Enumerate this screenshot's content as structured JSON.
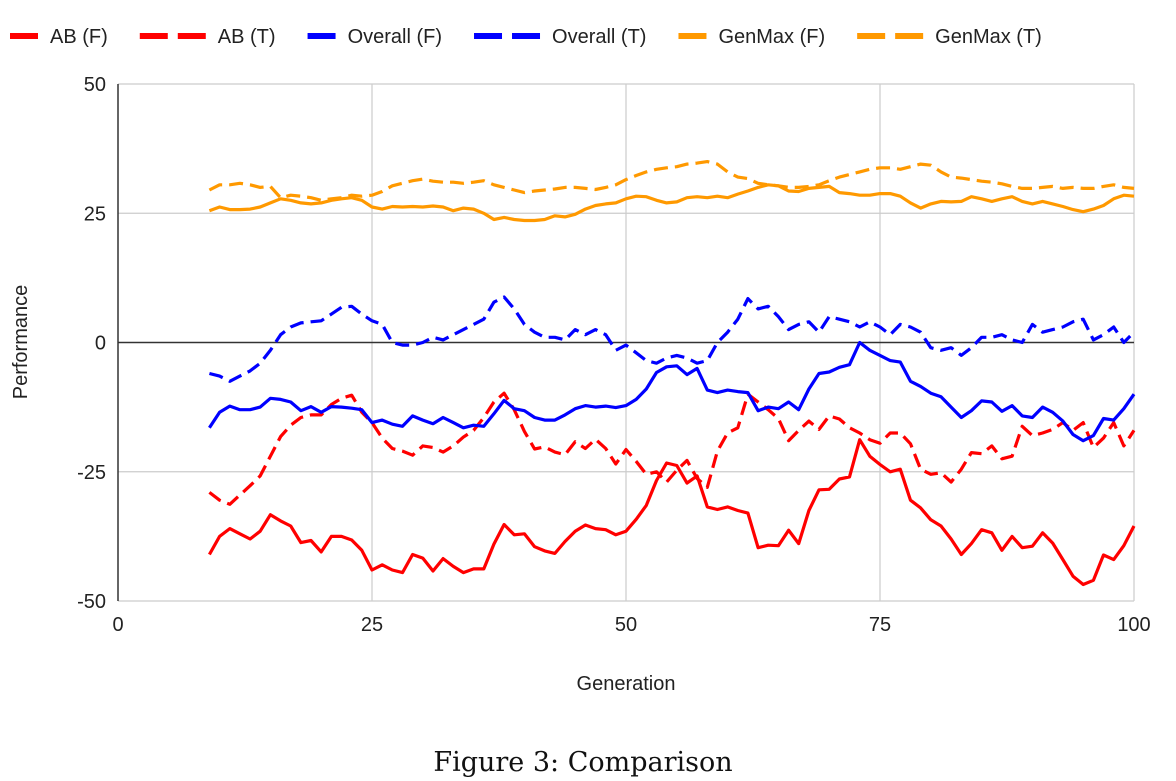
{
  "caption": "Figure 3: Comparison",
  "chart_data": {
    "type": "line",
    "title": "",
    "xlabel": "Generation",
    "ylabel": "Performance",
    "xlim": [
      0,
      100
    ],
    "ylim": [
      -50,
      50
    ],
    "x_ticks": [
      0,
      25,
      50,
      75,
      100
    ],
    "y_ticks": [
      -50,
      -25,
      0,
      25,
      50
    ],
    "x_tick_labels": [
      "0",
      "25",
      "50",
      "75",
      "100"
    ],
    "y_tick_labels": [
      "-50",
      "-25",
      "0",
      "25",
      "50"
    ],
    "grid": true,
    "legend_position": "top",
    "series": [
      {
        "name": "AB (F)",
        "color": "#ff0000",
        "dash": "solid",
        "x": [
          9,
          10,
          11,
          12,
          13,
          14,
          15,
          16,
          17,
          18,
          19,
          20,
          21,
          22,
          23,
          24,
          25,
          26,
          27,
          28,
          29,
          30,
          31,
          32,
          33,
          34,
          35,
          36,
          37,
          38,
          39,
          40,
          41,
          42,
          43,
          44,
          45,
          46,
          47,
          48,
          49,
          50,
          51,
          52,
          53,
          54,
          55,
          56,
          57,
          58,
          59,
          60,
          61,
          62,
          63,
          64,
          65,
          66,
          67,
          68,
          69,
          70,
          71,
          72,
          73,
          74,
          75,
          76,
          77,
          78,
          79,
          80,
          81,
          82,
          83,
          84,
          85,
          86,
          87,
          88,
          89,
          90,
          91,
          92,
          93,
          94,
          95,
          96,
          97,
          98,
          99,
          100
        ],
        "y": [
          -41,
          -37.5,
          -36,
          -37,
          -38,
          -36.5,
          -33.3,
          -34.5,
          -35.5,
          -38.7,
          -38.3,
          -40.5,
          -37.5,
          -37.5,
          -38.2,
          -40.2,
          -44,
          -43,
          -44,
          -44.5,
          -41,
          -41.7,
          -44.2,
          -41.8,
          -43.3,
          -44.5,
          -43.8,
          -43.8,
          -39,
          -35.2,
          -37.2,
          -37,
          -39.5,
          -40.3,
          -40.8,
          -38.5,
          -36.5,
          -35.3,
          -36,
          -36.2,
          -37.2,
          -36.5,
          -34.2,
          -31.5,
          -26.7,
          -23.3,
          -23.8,
          -27.2,
          -25.8,
          -31.8,
          -32.3,
          -31.8,
          -32.5,
          -33,
          -39.7,
          -39.2,
          -39.3,
          -36.3,
          -38.9,
          -32.5,
          -28.5,
          -28.4,
          -26.4,
          -26,
          -18.8,
          -22,
          -23.6,
          -25,
          -24.5,
          -30.5,
          -32,
          -34.3,
          -35.5,
          -38,
          -41,
          -38.9,
          -36.2,
          -36.8,
          -40.2,
          -37.5,
          -39.7,
          -39.4,
          -36.8,
          -38.8,
          -42,
          -45.2,
          -46.8,
          -46,
          -41.1,
          -42,
          -39.3,
          -35.5
        ]
      },
      {
        "name": "AB (T)",
        "color": "#ff0000",
        "dash": "dashed",
        "x": [
          9,
          10,
          11,
          12,
          13,
          14,
          15,
          16,
          17,
          18,
          19,
          20,
          21,
          22,
          23,
          24,
          25,
          26,
          27,
          28,
          29,
          30,
          31,
          32,
          33,
          34,
          35,
          36,
          37,
          38,
          39,
          40,
          41,
          42,
          43,
          44,
          45,
          46,
          47,
          48,
          49,
          50,
          51,
          52,
          53,
          54,
          55,
          56,
          57,
          58,
          59,
          60,
          61,
          62,
          63,
          64,
          65,
          66,
          67,
          68,
          69,
          70,
          71,
          72,
          73,
          74,
          75,
          76,
          77,
          78,
          79,
          80,
          81,
          82,
          83,
          84,
          85,
          86,
          87,
          88,
          89,
          90,
          91,
          92,
          93,
          94,
          95,
          96,
          97,
          98,
          99,
          100
        ],
        "y": [
          -29,
          -30.5,
          -31.3,
          -29.5,
          -27.7,
          -25.8,
          -22,
          -18.2,
          -16,
          -14.5,
          -14,
          -14,
          -12,
          -10.8,
          -10.2,
          -13.5,
          -15.5,
          -18.5,
          -20.5,
          -21,
          -21.8,
          -20,
          -20.3,
          -21.2,
          -20,
          -18.3,
          -17,
          -14.5,
          -11.5,
          -9.8,
          -13,
          -17.2,
          -20.6,
          -20.2,
          -21.2,
          -21.7,
          -19.2,
          -20.5,
          -18.7,
          -20.5,
          -23.5,
          -20.7,
          -23,
          -25.5,
          -25,
          -27,
          -24.7,
          -22.8,
          -26.3,
          -28,
          -21,
          -17.5,
          -16.5,
          -10,
          -11.5,
          -13,
          -14.7,
          -19,
          -17,
          -15.2,
          -16.8,
          -14.2,
          -14.8,
          -16.5,
          -17.5,
          -18.8,
          -19.5,
          -17.5,
          -17.5,
          -19.6,
          -24.5,
          -25.5,
          -25.2,
          -27,
          -24.5,
          -21.3,
          -21.5,
          -20,
          -22.5,
          -22,
          -16.2,
          -18,
          -17.5,
          -16.8,
          -15.5,
          -17,
          -15.5,
          -20.3,
          -18.5,
          -15.5,
          -20,
          -17
        ]
      },
      {
        "name": "Overall (F)",
        "color": "#0000ff",
        "dash": "solid",
        "x": [
          9,
          10,
          11,
          12,
          13,
          14,
          15,
          16,
          17,
          18,
          19,
          20,
          21,
          22,
          23,
          24,
          25,
          26,
          27,
          28,
          29,
          30,
          31,
          32,
          33,
          34,
          35,
          36,
          37,
          38,
          39,
          40,
          41,
          42,
          43,
          44,
          45,
          46,
          47,
          48,
          49,
          50,
          51,
          52,
          53,
          54,
          55,
          56,
          57,
          58,
          59,
          60,
          61,
          62,
          63,
          64,
          65,
          66,
          67,
          68,
          69,
          70,
          71,
          72,
          73,
          74,
          75,
          76,
          77,
          78,
          79,
          80,
          81,
          82,
          83,
          84,
          85,
          86,
          87,
          88,
          89,
          90,
          91,
          92,
          93,
          94,
          95,
          96,
          97,
          98,
          99,
          100
        ],
        "y": [
          -16.5,
          -13.5,
          -12.3,
          -13,
          -13,
          -12.5,
          -10.8,
          -11,
          -11.5,
          -13.2,
          -12.4,
          -13.5,
          -12.4,
          -12.5,
          -12.7,
          -13,
          -15.5,
          -15,
          -15.8,
          -16.2,
          -14.2,
          -15,
          -15.7,
          -14.5,
          -15.5,
          -16.5,
          -16,
          -16.2,
          -13.8,
          -11.2,
          -12.8,
          -13.2,
          -14.5,
          -15,
          -15,
          -14,
          -12.8,
          -12.2,
          -12.5,
          -12.3,
          -12.6,
          -12.2,
          -11,
          -9,
          -5.8,
          -4.7,
          -4.5,
          -6.2,
          -5,
          -9.2,
          -9.7,
          -9.2,
          -9.5,
          -9.7,
          -13.2,
          -12.5,
          -12.8,
          -11.5,
          -13,
          -9,
          -6,
          -5.7,
          -4.8,
          -4.3,
          0,
          -1.5,
          -2.5,
          -3.5,
          -3.8,
          -7.5,
          -8.5,
          -9.8,
          -10.5,
          -12.5,
          -14.5,
          -13.2,
          -11.3,
          -11.5,
          -13.3,
          -12.2,
          -14.2,
          -14.5,
          -12.5,
          -13.5,
          -15.2,
          -17.8,
          -19,
          -18,
          -14.7,
          -15,
          -12.8,
          -10
        ]
      },
      {
        "name": "Overall (T)",
        "color": "#0000ff",
        "dash": "dashed",
        "x": [
          9,
          10,
          11,
          12,
          13,
          14,
          15,
          16,
          17,
          18,
          19,
          20,
          21,
          22,
          23,
          24,
          25,
          26,
          27,
          28,
          29,
          30,
          31,
          32,
          33,
          34,
          35,
          36,
          37,
          38,
          39,
          40,
          41,
          42,
          43,
          44,
          45,
          46,
          47,
          48,
          49,
          50,
          51,
          52,
          53,
          54,
          55,
          56,
          57,
          58,
          59,
          60,
          61,
          62,
          63,
          64,
          65,
          66,
          67,
          68,
          69,
          70,
          71,
          72,
          73,
          74,
          75,
          76,
          77,
          78,
          79,
          80,
          81,
          82,
          83,
          84,
          85,
          86,
          87,
          88,
          89,
          90,
          91,
          92,
          93,
          94,
          95,
          96,
          97,
          98,
          99,
          100
        ],
        "y": [
          -6,
          -6.5,
          -7.5,
          -6.5,
          -5.5,
          -4,
          -1.5,
          1.5,
          3,
          3.8,
          4,
          4.2,
          5.5,
          6.8,
          7,
          5.5,
          4.2,
          3.5,
          0,
          -0.5,
          -0.5,
          0,
          1,
          0.5,
          1.5,
          2.5,
          3.5,
          4.5,
          7.8,
          8.8,
          6.5,
          3.5,
          2,
          1,
          1,
          0.5,
          2.5,
          1.5,
          2.5,
          1.5,
          -1.5,
          -0.5,
          -2,
          -3.5,
          -4,
          -3,
          -2.5,
          -3,
          -4,
          -3.5,
          0,
          2,
          4.5,
          8.5,
          6.5,
          7,
          5,
          2.5,
          3.5,
          4,
          2,
          5,
          4.5,
          4,
          3,
          4,
          3,
          1.5,
          3.5,
          3,
          2,
          -1,
          -1.5,
          -1,
          -2.5,
          -1,
          1,
          1,
          1.5,
          0.5,
          0,
          3.5,
          2,
          2.5,
          3,
          4,
          4.5,
          0.5,
          1.5,
          3,
          0,
          2
        ]
      },
      {
        "name": "GenMax (F)",
        "color": "#ff9900",
        "dash": "solid",
        "x": [
          9,
          10,
          11,
          12,
          13,
          14,
          15,
          16,
          17,
          18,
          19,
          20,
          21,
          22,
          23,
          24,
          25,
          26,
          27,
          28,
          29,
          30,
          31,
          32,
          33,
          34,
          35,
          36,
          37,
          38,
          39,
          40,
          41,
          42,
          43,
          44,
          45,
          46,
          47,
          48,
          49,
          50,
          51,
          52,
          53,
          54,
          55,
          56,
          57,
          58,
          59,
          60,
          61,
          62,
          63,
          64,
          65,
          66,
          67,
          68,
          69,
          70,
          71,
          72,
          73,
          74,
          75,
          76,
          77,
          78,
          79,
          80,
          81,
          82,
          83,
          84,
          85,
          86,
          87,
          88,
          89,
          90,
          91,
          92,
          93,
          94,
          95,
          96,
          97,
          98,
          99,
          100
        ],
        "y": [
          25.5,
          26.2,
          25.7,
          25.7,
          25.8,
          26.2,
          27,
          27.8,
          27.5,
          27,
          26.8,
          27,
          27.5,
          27.8,
          28,
          27.5,
          26.2,
          25.8,
          26.3,
          26.2,
          26.3,
          26.2,
          26.4,
          26.2,
          25.5,
          26,
          25.8,
          25,
          23.8,
          24.2,
          23.8,
          23.6,
          23.6,
          23.8,
          24.5,
          24.3,
          24.8,
          25.8,
          26.5,
          26.8,
          27,
          27.8,
          28.3,
          28.2,
          27.5,
          27,
          27.2,
          28,
          28.2,
          28,
          28.3,
          28,
          28.7,
          29.3,
          30,
          30.5,
          30.3,
          29.3,
          29.2,
          29.8,
          30,
          30.2,
          29,
          28.8,
          28.5,
          28.5,
          28.8,
          28.8,
          28.3,
          27,
          26,
          26.8,
          27.3,
          27.2,
          27.3,
          28.2,
          27.8,
          27.3,
          27.8,
          28.2,
          27.3,
          26.8,
          27.3,
          26.8,
          26.3,
          25.7,
          25.3,
          25.8,
          26.5,
          27.8,
          28.5,
          28.3
        ]
      },
      {
        "name": "GenMax (T)",
        "color": "#ff9900",
        "dash": "dashed",
        "x": [
          9,
          10,
          11,
          12,
          13,
          14,
          15,
          16,
          17,
          18,
          19,
          20,
          21,
          22,
          23,
          24,
          25,
          26,
          27,
          28,
          29,
          30,
          31,
          32,
          33,
          34,
          35,
          36,
          37,
          38,
          39,
          40,
          41,
          42,
          43,
          44,
          45,
          46,
          47,
          48,
          49,
          50,
          51,
          52,
          53,
          54,
          55,
          56,
          57,
          58,
          59,
          60,
          61,
          62,
          63,
          64,
          65,
          66,
          67,
          68,
          69,
          70,
          71,
          72,
          73,
          74,
          75,
          76,
          77,
          78,
          79,
          80,
          81,
          82,
          83,
          84,
          85,
          86,
          87,
          88,
          89,
          90,
          91,
          92,
          93,
          94,
          95,
          96,
          97,
          98,
          99,
          100
        ],
        "y": [
          29.5,
          30.5,
          30.5,
          30.8,
          30.5,
          30,
          30.2,
          28,
          28.5,
          28.3,
          28,
          27.5,
          27.8,
          28,
          28.5,
          28.3,
          28.5,
          29.2,
          30.3,
          30.8,
          31.3,
          31.6,
          31.2,
          31,
          31,
          30.8,
          31,
          31.3,
          30.5,
          30,
          29.5,
          29,
          29.3,
          29.5,
          29.7,
          30,
          30,
          29.8,
          29.6,
          30,
          30.5,
          31.5,
          32.3,
          33,
          33.5,
          33.8,
          34,
          34.5,
          34.7,
          35,
          34.5,
          33,
          32,
          31.7,
          30.8,
          30.5,
          30.3,
          30,
          30,
          30.2,
          30.5,
          31.3,
          32,
          32.5,
          33,
          33.5,
          33.8,
          33.8,
          33.5,
          34,
          34.5,
          34.3,
          33,
          32,
          31.8,
          31.5,
          31.2,
          31,
          30.7,
          30.2,
          29.8,
          29.8,
          30,
          30.2,
          29.8,
          30,
          29.8,
          29.8,
          30.2,
          30.5,
          30,
          29.8
        ]
      }
    ]
  }
}
